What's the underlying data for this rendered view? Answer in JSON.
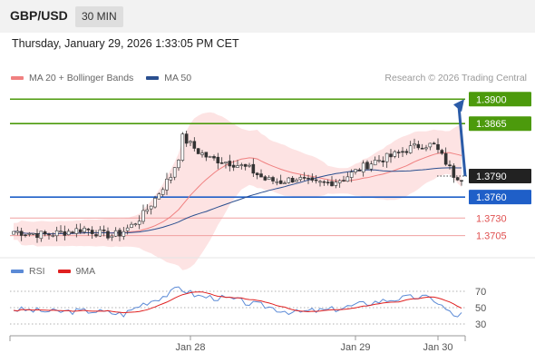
{
  "header": {
    "pair": "GBP/USD",
    "timeframe": "30 MIN"
  },
  "datetime": "Thursday, January 29, 2026 1:33:05 PM CET",
  "legend": [
    {
      "label": "MA 20 + Bollinger Bands",
      "color": "#f08080"
    },
    {
      "label": "MA 50",
      "color": "#2a4f8f"
    }
  ],
  "credit": "Research © 2026 Trading Central",
  "rsi_legend": [
    {
      "label": "RSI",
      "color": "#5b8ad6"
    },
    {
      "label": "9MA",
      "color": "#e02020"
    }
  ],
  "colors": {
    "up": "#1aa34a",
    "down": "#d62020",
    "resistance": "#4c9a0c",
    "support": "#1f5fc8",
    "pivot": "#e05050",
    "current": "#222222"
  },
  "chart_data": [
    {
      "type": "candlestick",
      "x_tick_labels": [
        "Jan 28",
        "Jan 29",
        "Jan 30"
      ],
      "ylim": [
        1.3685,
        1.3912
      ],
      "price_levels": [
        {
          "value": 1.39,
          "label": "1.3900",
          "kind": "resistance"
        },
        {
          "value": 1.3865,
          "label": "1.3865",
          "kind": "resistance"
        },
        {
          "value": 1.379,
          "label": "1.3790",
          "kind": "current"
        },
        {
          "value": 1.376,
          "label": "1.3760",
          "kind": "support"
        },
        {
          "value": 1.373,
          "label": "1.3730",
          "kind": "pivot"
        },
        {
          "value": 1.3705,
          "label": "1.3705",
          "kind": "pivot"
        }
      ],
      "anchors": [
        [
          0,
          1.3711
        ],
        [
          8,
          1.3706
        ],
        [
          15,
          1.3712
        ],
        [
          18,
          1.3715
        ],
        [
          22,
          1.3708
        ],
        [
          25,
          1.3705
        ],
        [
          27,
          1.3708
        ],
        [
          30,
          1.3719
        ],
        [
          33,
          1.3735
        ],
        [
          36,
          1.3758
        ],
        [
          38,
          1.3775
        ],
        [
          40,
          1.379
        ],
        [
          42,
          1.3818
        ],
        [
          43,
          1.3845
        ],
        [
          45,
          1.3835
        ],
        [
          47,
          1.3825
        ],
        [
          50,
          1.3815
        ],
        [
          53,
          1.3812
        ],
        [
          56,
          1.3808
        ],
        [
          60,
          1.38
        ],
        [
          64,
          1.3785
        ],
        [
          68,
          1.3782
        ],
        [
          72,
          1.3787
        ],
        [
          76,
          1.3779
        ],
        [
          80,
          1.378
        ],
        [
          84,
          1.3787
        ],
        [
          88,
          1.38
        ],
        [
          92,
          1.3812
        ],
        [
          96,
          1.3818
        ],
        [
          100,
          1.3828
        ],
        [
          104,
          1.3835
        ],
        [
          107,
          1.3834
        ],
        [
          110,
          1.381
        ],
        [
          112,
          1.3792
        ],
        [
          114,
          1.3788
        ]
      ],
      "candle_count": 115,
      "projection": {
        "from": 1.379,
        "to": 1.39
      }
    },
    {
      "type": "line",
      "name": "RSI",
      "y_tick_labels": [
        "70",
        "50",
        "30"
      ],
      "ylim": [
        20,
        80
      ],
      "levels": [
        70,
        50,
        30
      ],
      "rsi_anchors": [
        [
          0,
          48
        ],
        [
          10,
          45
        ],
        [
          20,
          46
        ],
        [
          28,
          42
        ],
        [
          33,
          55
        ],
        [
          37,
          62
        ],
        [
          40,
          68
        ],
        [
          42,
          75
        ],
        [
          44,
          70
        ],
        [
          47,
          64
        ],
        [
          52,
          62
        ],
        [
          56,
          60
        ],
        [
          60,
          55
        ],
        [
          64,
          52
        ],
        [
          68,
          47
        ],
        [
          72,
          44
        ],
        [
          76,
          46
        ],
        [
          80,
          47
        ],
        [
          84,
          50
        ],
        [
          88,
          54
        ],
        [
          92,
          57
        ],
        [
          96,
          60
        ],
        [
          100,
          62
        ],
        [
          104,
          63
        ],
        [
          107,
          60
        ],
        [
          110,
          48
        ],
        [
          112,
          40
        ],
        [
          114,
          42
        ]
      ]
    }
  ]
}
